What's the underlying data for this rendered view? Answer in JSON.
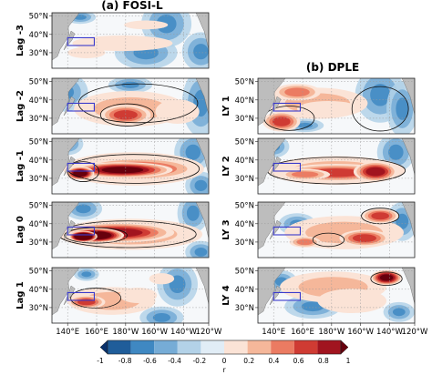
{
  "figure": {
    "left_title": "(a) FOSI-L",
    "right_title": "(b) DPLE",
    "left_panels": [
      {
        "label": "Lag -3",
        "lat_ticks": [
          "50°N",
          "40°N",
          "30°N"
        ]
      },
      {
        "label": "Lag -2",
        "lat_ticks": [
          "50°N",
          "40°N",
          "30°N"
        ]
      },
      {
        "label": "Lag -1",
        "lat_ticks": [
          "50°N",
          "40°N",
          "30°N"
        ]
      },
      {
        "label": "Lag 0",
        "lat_ticks": [
          "50°N",
          "40°N",
          "30°N"
        ]
      },
      {
        "label": "Lag 1",
        "lat_ticks": [
          "50°N",
          "40°N",
          "30°N"
        ]
      }
    ],
    "right_panels": [
      {
        "label": "LY 1",
        "lat_ticks": [
          "50°N",
          "40°N",
          "30°N"
        ]
      },
      {
        "label": "LY 2",
        "lat_ticks": [
          "50°N",
          "40°N",
          "30°N"
        ]
      },
      {
        "label": "LY 3",
        "lat_ticks": [
          "50°N",
          "40°N",
          "30°N"
        ]
      },
      {
        "label": "LY 4",
        "lat_ticks": [
          "50°N",
          "40°N",
          "30°N"
        ]
      }
    ],
    "lon_ticks": [
      "140°E",
      "160°E",
      "180°W",
      "160°W",
      "140°W",
      "120°W"
    ],
    "colorbar": {
      "ticks": [
        "-1",
        "-0.8",
        "-0.6",
        "-0.4",
        "-0.2",
        "0",
        "0.2",
        "0.4",
        "0.6",
        "0.8",
        "1"
      ],
      "label": "r",
      "colors": [
        "#08306b",
        "#1f5d9a",
        "#3f88c2",
        "#76acd6",
        "#b3d2e8",
        "#e1edf6",
        "#fbe3d6",
        "#f5b79a",
        "#eb7b62",
        "#cf3b33",
        "#a1141f",
        "#67000d"
      ]
    },
    "colors": {
      "land": "#bdbdbd",
      "box": "#3a3acc",
      "contour": "#111111",
      "grid": "#9a9a9a"
    }
  }
}
